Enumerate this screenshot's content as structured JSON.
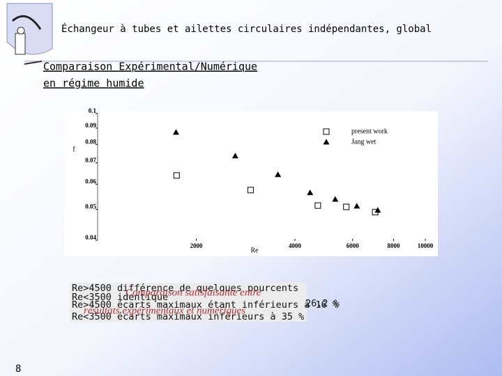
{
  "slide": {
    "title": "Échangeur à tubes et ailettes circulaires indépendantes, global",
    "subtitle": [
      "Comparaison Expérimental/Numérique",
      "en régime humide"
    ],
    "notes": [
      "Re>4500 différence de quelques pourcents",
      "Re<3500 identique",
      "Re>4500 écarts maximaux étant inférieurs à 16 %",
      "Re<3500 écarts maximaux inférieurs à 35 %"
    ],
    "overlay": [
      "Comparaison satisfaisante entre",
      "résultats expérimentaux et numériques",
      "26.2 %"
    ],
    "page": "8"
  },
  "chart_data": {
    "type": "scatter",
    "xlabel": "Re",
    "ylabel": "f",
    "xscale": "log",
    "yscale": "log",
    "xlim": [
      1000,
      10000
    ],
    "xticks": [
      2000,
      4000,
      6000,
      8000,
      10000
    ],
    "ylim": [
      0.04,
      0.1
    ],
    "yticks": [
      0.04,
      0.05,
      0.06,
      0.07,
      0.08,
      0.09,
      0.1
    ],
    "legend": "upper right",
    "series": [
      {
        "name": "present work",
        "marker": "square",
        "color": "#000000",
        "x": [
          1742,
          2930,
          4700,
          5740,
          7030
        ],
        "values": [
          0.0639,
          0.0575,
          0.0514,
          0.0509,
          0.049
        ]
      },
      {
        "name": "Jang wet",
        "marker": "triangle",
        "color": "#000000",
        "x": [
          1735,
          2630,
          3550,
          4450,
          5310,
          6180,
          7160
        ],
        "values": [
          0.0873,
          0.0736,
          0.0643,
          0.0564,
          0.0538,
          0.0512,
          0.0497
        ]
      }
    ]
  }
}
